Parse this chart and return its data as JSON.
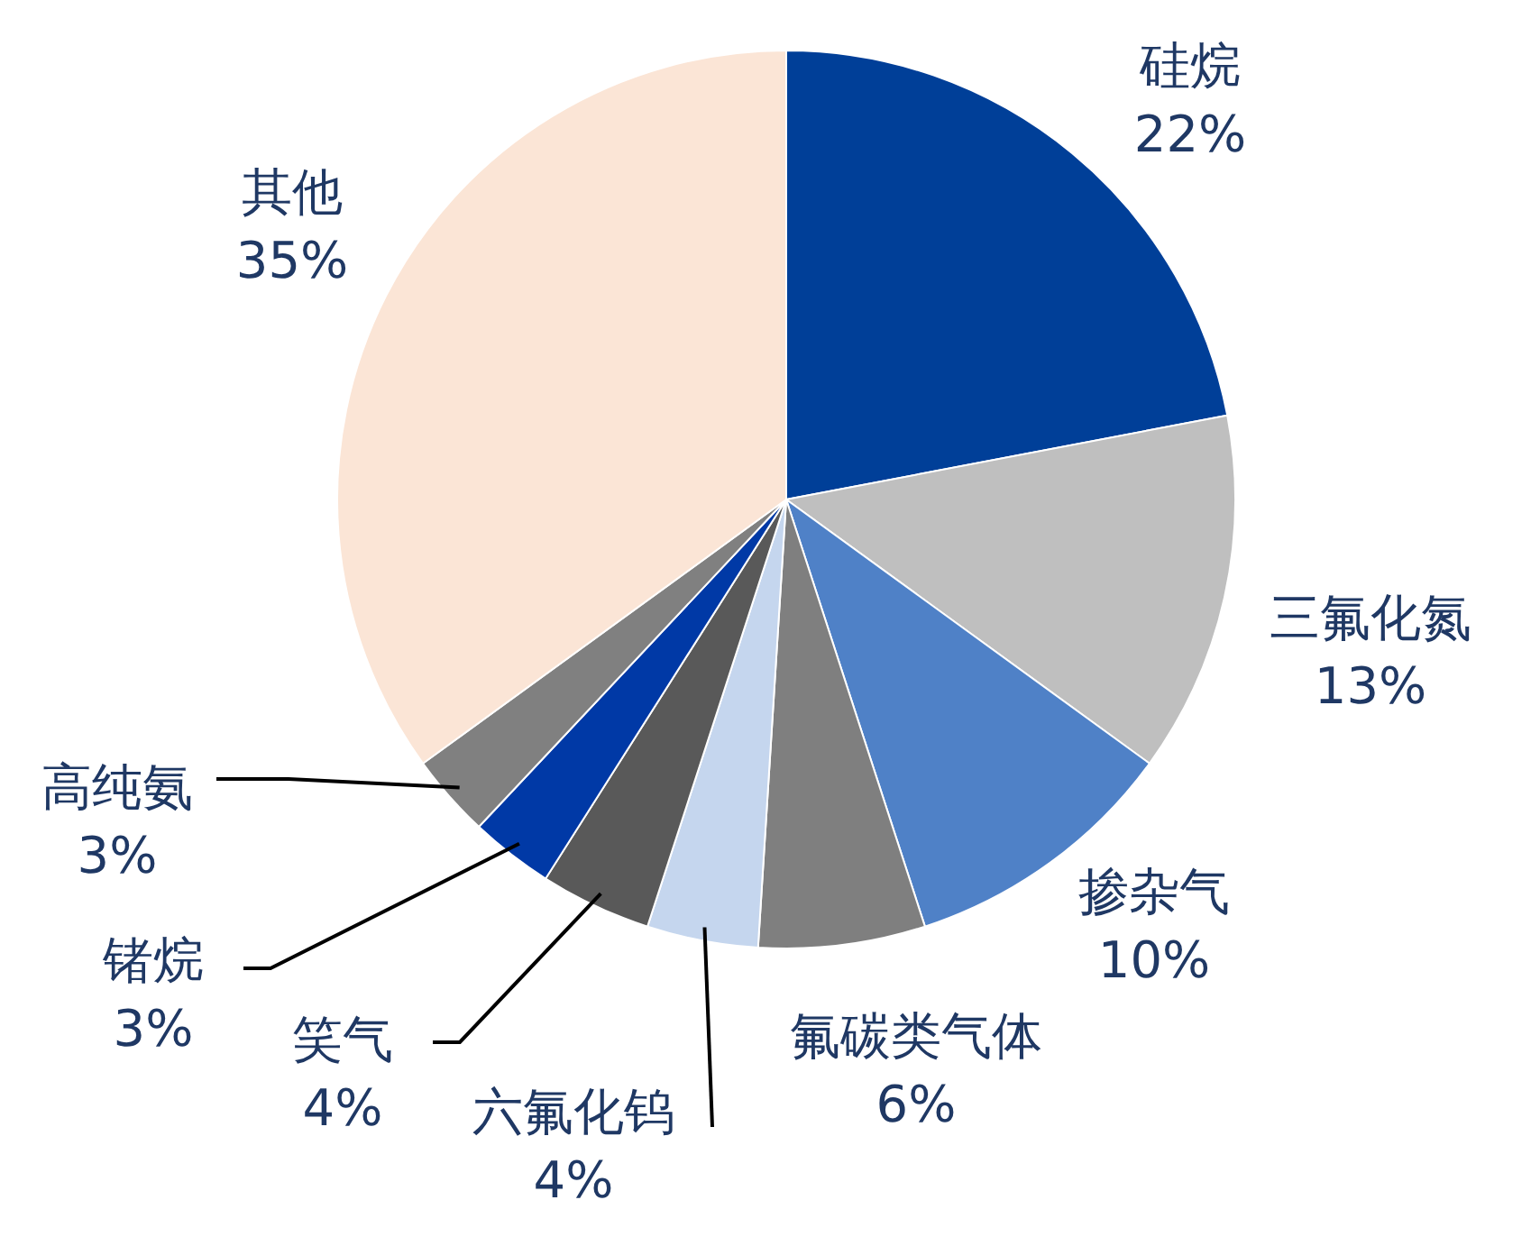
{
  "chart_data": {
    "type": "pie",
    "categories": [
      "硅烷",
      "三氟化氮",
      "掺杂气",
      "氟碳类气体",
      "六氟化钨",
      "笑气",
      "锗烷",
      "高纯氨",
      "其他"
    ],
    "values": [
      22,
      13,
      10,
      6,
      4,
      4,
      3,
      3,
      35
    ],
    "value_labels": [
      "22%",
      "13%",
      "10%",
      "6%",
      "4%",
      "4%",
      "3%",
      "3%",
      "35%"
    ],
    "colors": [
      "#003f98",
      "#bfbfbf",
      "#4f81c7",
      "#7f7f7f",
      "#c5d6ee",
      "#595959",
      "#0039a6",
      "#808080",
      "#fbe5d6"
    ]
  }
}
